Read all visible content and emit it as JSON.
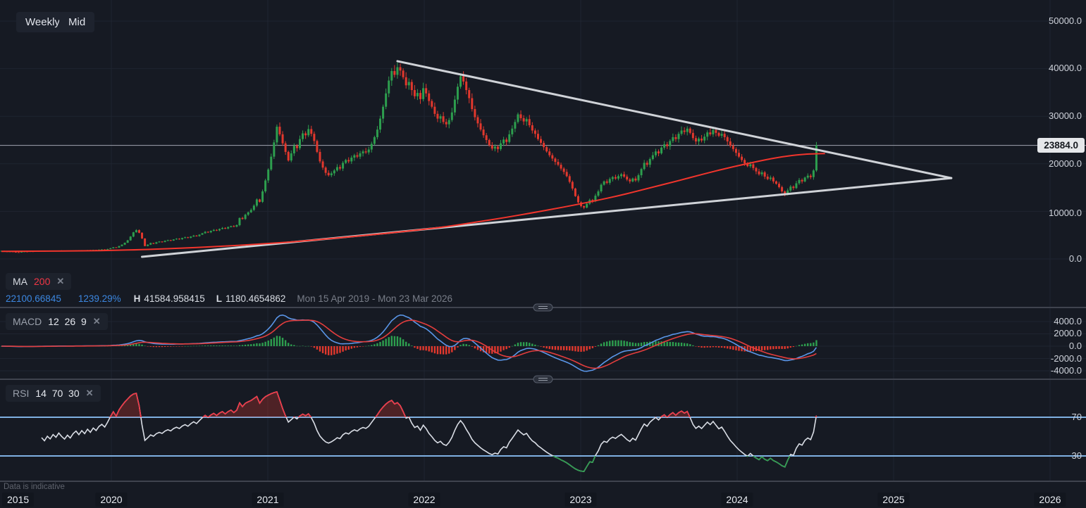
{
  "toolbar": {
    "interval_label": "Weekly",
    "style_label": "Mid"
  },
  "legends": {
    "ma": {
      "name": "MA",
      "param": "200",
      "close_label": "✕",
      "value": "22100.66845",
      "change_pct": "1239.29%",
      "high_label": "H",
      "high_value": "41584.958415",
      "low_label": "L",
      "low_value": "1180.4654862",
      "range": "Mon 15 Apr 2019 - Mon 23 Mar 2026"
    },
    "macd": {
      "name": "MACD",
      "params": "12  26  9",
      "close_label": "✕"
    },
    "rsi": {
      "name": "RSI",
      "params": "14  70  30",
      "close_label": "✕"
    }
  },
  "footer": {
    "note": "Data is indicative"
  },
  "axes": {
    "price_labels": [
      "50000.0",
      "40000.0",
      "30000.0",
      "20000.0",
      "10000.0",
      "0.0"
    ],
    "price_line_label": "23884.0",
    "macd_labels": [
      "4000.0",
      "2000.0",
      "0.0",
      "-2000.0",
      "-4000.0"
    ],
    "rsi_labels": [
      "70",
      "30"
    ],
    "time_labels": [
      "2015",
      "2020",
      "2021",
      "2022",
      "2023",
      "2024",
      "2025",
      "2026"
    ]
  },
  "colors": {
    "background": "#161a23",
    "grid": "#1f2430",
    "divider": "#3f434e",
    "candle_up": "#2d9e4e",
    "candle_down": "#e2382d",
    "ma_line": "#f2352c",
    "trendline": "#d9dce1",
    "macd_line": "#5a96e8",
    "macd_signal": "#e33d3d",
    "rsi_line": "#d9dde5",
    "rsi_band": "#7fb0e2",
    "rsi_overbought_fill": "rgba(226,56,45,0.28)",
    "price_line": "#9194a0",
    "price_tag_bg": "#e5e7ea"
  },
  "chart_data": {
    "type": "candlestick",
    "title": "",
    "interval": "Weekly",
    "x_range": [
      "Mon 15 Apr 2019",
      "Mon 23 Mar 2026"
    ],
    "y_axis": {
      "min": 0,
      "max": 50000,
      "ticks": [
        50000,
        40000,
        30000,
        20000,
        10000,
        0
      ]
    },
    "last_price": 23884.0,
    "high": 41584.958415,
    "low": 1180.4654862,
    "weekly_closes": [
      1700,
      1580,
      1520,
      1560,
      1470,
      1420,
      1390,
      1480,
      1560,
      1520,
      1600,
      1560,
      1640,
      1600,
      1680,
      1620,
      1700,
      1650,
      1730,
      1680,
      1760,
      1700,
      1650,
      1720,
      1670,
      1750,
      1800,
      1740,
      1820,
      1770,
      1860,
      1810,
      1900,
      1860,
      1950,
      2000,
      1960,
      2080,
      2250,
      2450,
      2380,
      2700,
      3000,
      3400,
      3900,
      4700,
      5600,
      6050,
      5500,
      4300,
      2700,
      3000,
      3350,
      3200,
      3500,
      3650,
      3550,
      3800,
      3950,
      3850,
      4100,
      4250,
      4150,
      4400,
      4550,
      4450,
      4700,
      4900,
      4800,
      5100,
      5400,
      5700,
      5600,
      5900,
      6100,
      6000,
      6300,
      6500,
      6400,
      6700,
      6900,
      6800,
      7100,
      8600,
      8400,
      9300,
      9800,
      10300,
      11200,
      12500,
      12000,
      14200,
      16500,
      18800,
      21500,
      24500,
      27800,
      26200,
      24300,
      22500,
      20700,
      22200,
      23800,
      23300,
      25200,
      26400,
      26000,
      27300,
      26300,
      24800,
      22500,
      20500,
      19200,
      18100,
      17600,
      18000,
      18600,
      19300,
      19000,
      20200,
      20800,
      20500,
      21300,
      21800,
      21500,
      22200,
      22600,
      22400,
      23000,
      24200,
      25600,
      27200,
      29500,
      32000,
      34800,
      37500,
      39500,
      38700,
      40300,
      39600,
      38200,
      36500,
      37200,
      35500,
      34200,
      34900,
      33600,
      35900,
      34800,
      33200,
      32000,
      30500,
      29500,
      30000,
      28800,
      28300,
      29200,
      30800,
      33500,
      36200,
      38400,
      37300,
      35500,
      33800,
      31500,
      29800,
      28500,
      27200,
      26000,
      25000,
      23900,
      23200,
      23600,
      23100,
      24300,
      25100,
      24600,
      26200,
      27400,
      28800,
      30400,
      29600,
      28900,
      29400,
      28100,
      27000,
      26300,
      25200,
      24400,
      23500,
      22600,
      21800,
      21100,
      20400,
      19800,
      19000,
      18300,
      17400,
      16200,
      14800,
      13200,
      11900,
      11100,
      10800,
      11600,
      12400,
      12100,
      13300,
      14200,
      15600,
      16300,
      16000,
      16800,
      17200,
      16900,
      17400,
      17800,
      17300,
      16700,
      16300,
      16900,
      16500,
      17600,
      18900,
      20200,
      19800,
      21000,
      21800,
      22600,
      22200,
      23400,
      24100,
      23700,
      24800,
      25600,
      25200,
      26300,
      27000,
      26700,
      27400,
      26500,
      25400,
      24700,
      25300,
      24900,
      25700,
      26600,
      26200,
      27100,
      26500,
      25900,
      26300,
      25600,
      24700,
      23800,
      23100,
      22300,
      21500,
      20800,
      20100,
      19500,
      19900,
      19100,
      18400,
      17800,
      18200,
      17300,
      16800,
      17100,
      16300,
      15800,
      15100,
      14200,
      13600,
      14400,
      15200,
      14900,
      15900,
      16600,
      16300,
      17100,
      17500,
      17200,
      18600,
      23884
    ],
    "ma200": {
      "period": 200,
      "last_value": 22100.66845,
      "points_week_price": [
        [
          0,
          1600
        ],
        [
          14,
          1620
        ],
        [
          29,
          1700
        ],
        [
          39,
          1800
        ],
        [
          49,
          1950
        ],
        [
          58,
          2150
        ],
        [
          68,
          2400
        ],
        [
          78,
          2700
        ],
        [
          88,
          3050
        ],
        [
          98,
          3450
        ],
        [
          108,
          3900
        ],
        [
          117,
          4400
        ],
        [
          127,
          4950
        ],
        [
          137,
          5550
        ],
        [
          147,
          6200
        ],
        [
          157,
          6950
        ],
        [
          166,
          7800
        ],
        [
          176,
          8750
        ],
        [
          186,
          9800
        ],
        [
          196,
          10900
        ],
        [
          206,
          12100
        ],
        [
          216,
          13400
        ],
        [
          225,
          14800
        ],
        [
          235,
          16300
        ],
        [
          245,
          17900
        ],
        [
          255,
          19400
        ],
        [
          265,
          20700
        ],
        [
          272,
          21500
        ],
        [
          279,
          22000
        ],
        [
          284,
          22100
        ],
        [
          287,
          22150
        ]
      ]
    },
    "trendlines": [
      {
        "name": "descending-resistance",
        "from_week": 138,
        "from_price": 41580,
        "to_week": 331,
        "to_price": 17000
      },
      {
        "name": "ascending-support",
        "from_week": 49,
        "from_price": 450,
        "to_week": 331,
        "to_price": 17000
      }
    ],
    "indicators": {
      "macd": {
        "fast": 12,
        "slow": 26,
        "signal": 9,
        "y_ticks": [
          4000,
          2000,
          0,
          -2000,
          -4000
        ]
      },
      "rsi": {
        "period": 14,
        "overbought": 70,
        "oversold": 30
      }
    }
  }
}
